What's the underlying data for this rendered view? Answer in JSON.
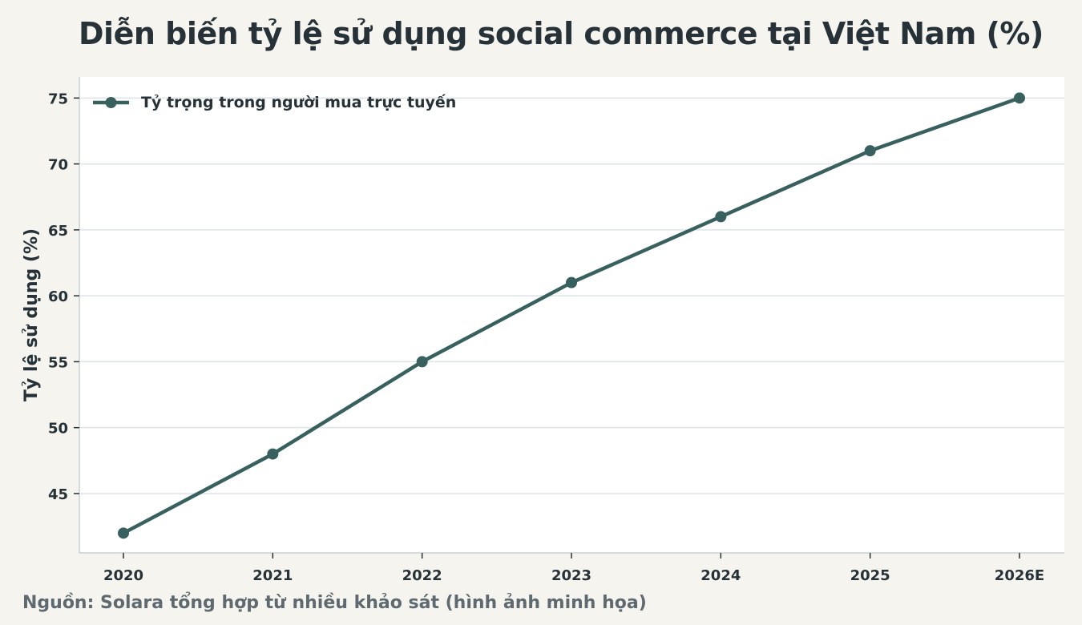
{
  "title": "Diễn biến tỷ lệ sử dụng social commerce tại Việt Nam (%)",
  "footnote": "Nguồn: Solara tổng hợp từ nhiều khảo sát (hình ảnh minh họa)",
  "colors": {
    "background": "#f5f4ef",
    "plot_background": "#ffffff",
    "series": "#38605f",
    "grid": "#dde3e6"
  },
  "chart_data": {
    "type": "line",
    "title": "Diễn biến tỷ lệ sử dụng social commerce tại Việt Nam (%)",
    "xlabel": "",
    "ylabel": "Tỷ lệ sử dụng (%)",
    "categories": [
      "2020",
      "2021",
      "2022",
      "2023",
      "2024",
      "2025",
      "2026E"
    ],
    "series": [
      {
        "name": "Tỷ trọng trong người mua trực tuyến",
        "values": [
          42,
          48,
          55,
          61,
          66,
          71,
          75
        ]
      }
    ],
    "yticks": [
      45,
      50,
      55,
      60,
      65,
      70,
      75
    ],
    "ylim": [
      40.5,
      76.6
    ],
    "grid": "horizontal",
    "legend_position": "top-left",
    "markers": "circle"
  }
}
